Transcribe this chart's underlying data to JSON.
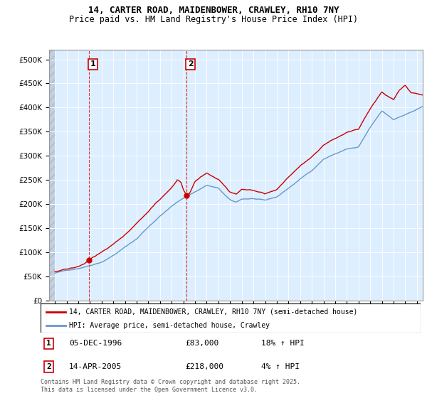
{
  "title": "14, CARTER ROAD, MAIDENBOWER, CRAWLEY, RH10 7NY",
  "subtitle": "Price paid vs. HM Land Registry's House Price Index (HPI)",
  "ylim": [
    0,
    520000
  ],
  "yticks": [
    0,
    50000,
    100000,
    150000,
    200000,
    250000,
    300000,
    350000,
    400000,
    450000,
    500000
  ],
  "ytick_labels": [
    "£0",
    "£50K",
    "£100K",
    "£150K",
    "£200K",
    "£250K",
    "£300K",
    "£350K",
    "£400K",
    "£450K",
    "£500K"
  ],
  "xlim_start": 1993.5,
  "xlim_end": 2025.5,
  "sale1_x": 1996.92,
  "sale1_y": 83000,
  "sale2_x": 2005.28,
  "sale2_y": 218000,
  "legend_line1": "14, CARTER ROAD, MAIDENBOWER, CRAWLEY, RH10 7NY (semi-detached house)",
  "legend_line2": "HPI: Average price, semi-detached house, Crawley",
  "red_color": "#cc0000",
  "blue_color": "#6699cc",
  "bg_chart": "#ddeeff",
  "bg_hatch_left": "#c8d8e8",
  "footer": "Contains HM Land Registry data © Crown copyright and database right 2025.\nThis data is licensed under the Open Government Licence v3.0.",
  "title_fontsize": 9,
  "subtitle_fontsize": 8.5,
  "tick_fontsize": 7.5,
  "legend_fontsize": 8
}
